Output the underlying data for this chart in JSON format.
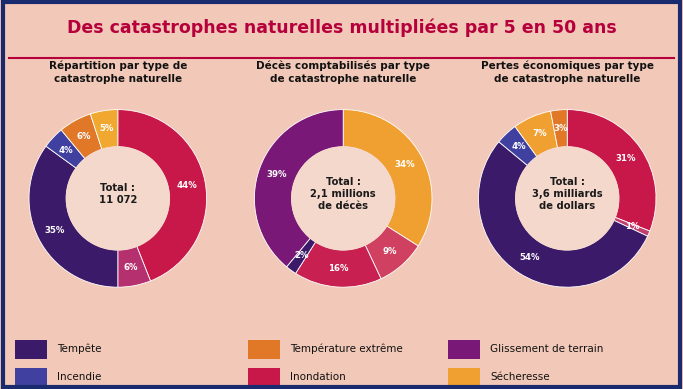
{
  "title": "Des catastrophes naturelles multipliées par 5 en 50 ans",
  "bg_color": "#f2c9b8",
  "border_color": "#1a2a6e",
  "title_color": "#b5003c",
  "title_bg": "#f5d8cc",
  "chart1_title": "Répartition par type de\ncatastrophe naturelle",
  "chart1_center": "Total :\n11 072",
  "chart1_values": [
    44,
    6,
    35,
    4,
    6,
    5
  ],
  "chart1_labels": [
    "44%",
    "6%",
    "35%",
    "4%",
    "6%",
    "5%"
  ],
  "chart1_colors": [
    "#c8184a",
    "#b5306e",
    "#3b1a6a",
    "#4040a0",
    "#e07828",
    "#f0a830"
  ],
  "chart1_label_colors": [
    "white",
    "white",
    "white",
    "white",
    "white",
    "white"
  ],
  "chart2_title": "Décès comptabilisés par type\nde catastrophe naturelle",
  "chart2_center": "Total :\n2,1 millions\nde décès",
  "chart2_values": [
    34,
    9,
    16,
    2,
    39
  ],
  "chart2_labels": [
    "34%",
    "9%",
    "16%",
    "2%",
    "39%"
  ],
  "chart2_colors": [
    "#f0a030",
    "#d04060",
    "#c82050",
    "#3b1a6a",
    "#7a1878"
  ],
  "chart2_label_colors": [
    "white",
    "white",
    "white",
    "white",
    "white"
  ],
  "chart3_title": "Pertes économiques par type\nde catastrophe naturelle",
  "chart3_center": "Total :\n3,6 milliards\nde dollars",
  "chart3_values": [
    31,
    1,
    54,
    4,
    7,
    3
  ],
  "chart3_labels": [
    "31%",
    "1%",
    "54%",
    "4%",
    "7%",
    "3%"
  ],
  "chart3_colors": [
    "#c8184a",
    "#c04070",
    "#3b1a6a",
    "#4040a0",
    "#f0a030",
    "#e07828"
  ],
  "chart3_label_colors": [
    "white",
    "white",
    "white",
    "white",
    "white",
    "white"
  ],
  "legend_items": [
    {
      "label": "Tempête",
      "color": "#3b1a6a"
    },
    {
      "label": "Température extrême",
      "color": "#e07828"
    },
    {
      "label": "Glissement de terrain",
      "color": "#7a1878"
    },
    {
      "label": "Incendie",
      "color": "#4040a0"
    },
    {
      "label": "Inondation",
      "color": "#c8184a"
    },
    {
      "label": "Sécheresse",
      "color": "#f0a030"
    }
  ]
}
